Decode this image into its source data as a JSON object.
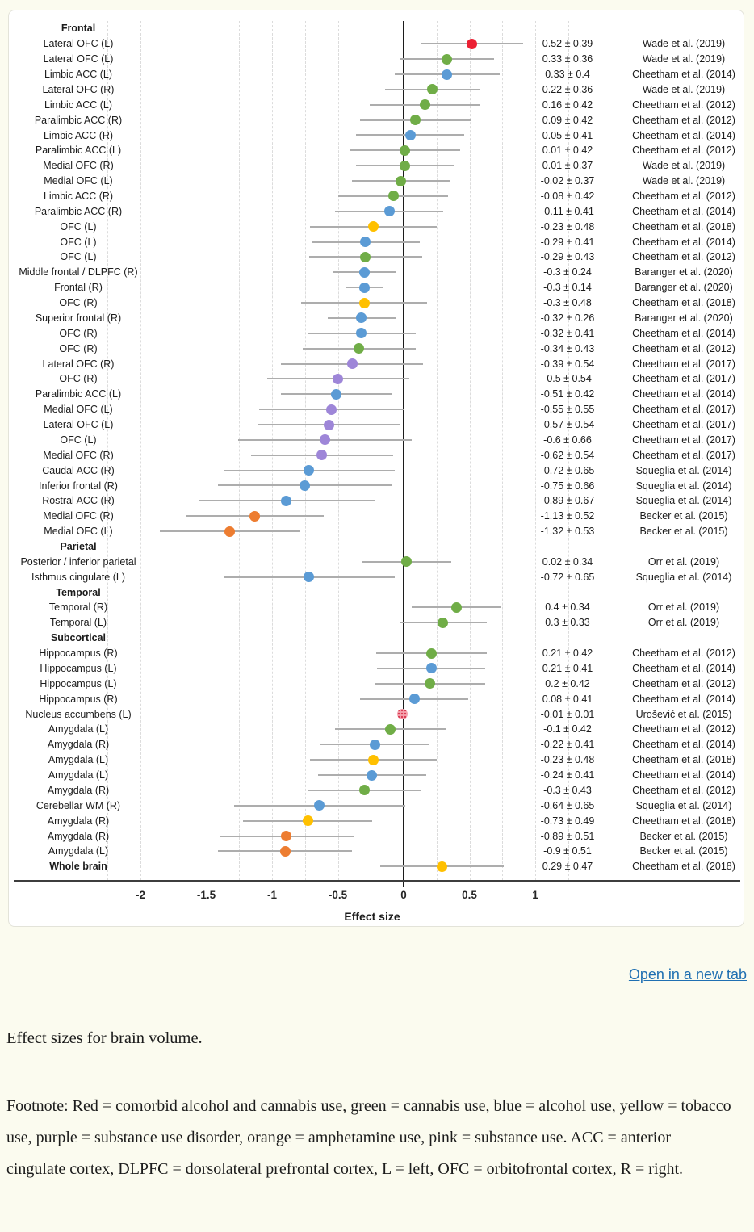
{
  "page": {
    "background": "#fbfbef"
  },
  "figure_viewer": {
    "open_link_label": "Open in a new tab",
    "link_color": "#1f6fb2"
  },
  "caption": "Effect sizes for brain volume.",
  "footnote": "Footnote: Red = comorbid alcohol and cannabis use, green = cannabis use, blue = alcohol use, yellow = tobacco use, purple = substance use disorder, orange = amphetamine use, pink = substance use. ACC = anterior cingulate cortex, DLPFC = dorsolateral prefrontal cortex, L = left, OFC = orbitofrontal cortex, R = right.",
  "chart_data": {
    "type": "scatter",
    "subtype": "forest-plot",
    "xlabel": "Effect size",
    "tick_values": [
      -2,
      -1.5,
      -1,
      -0.5,
      0,
      0.5,
      1
    ],
    "tick_labels": [
      "-2",
      "-1.5",
      "-1",
      "-0.5",
      "0",
      "0.5",
      "1"
    ],
    "xlim": [
      -2.27,
      1.29
    ],
    "minor_grid_step": 0.25,
    "grid": "dashed-vertical",
    "colors": {
      "red": "#ec2033",
      "green": "#70ad47",
      "blue": "#5b9bd5",
      "yellow": "#ffc000",
      "purple": "#9e86d8",
      "orange": "#ed7d31",
      "pink": "#f5a3ae",
      "pink_pattern_dot": "#d93a52",
      "error_bar": "#adadad"
    },
    "color_legend": {
      "red": "comorbid alcohol and cannabis use",
      "green": "cannabis use",
      "blue": "alcohol use",
      "yellow": "tobacco use",
      "purple": "substance use disorder",
      "orange": "amphetamine use",
      "pink": "substance use"
    },
    "rows": [
      {
        "header": "Frontal"
      },
      {
        "label": "Lateral OFC (L)",
        "value": "0.52 ± 0.39",
        "effect": 0.52,
        "sd": 0.39,
        "color": "red",
        "study": "Wade et al. (2019)"
      },
      {
        "label": "Lateral OFC (L)",
        "value": "0.33 ± 0.36",
        "effect": 0.33,
        "sd": 0.36,
        "color": "green",
        "study": "Wade et al. (2019)"
      },
      {
        "label": "Limbic ACC (L)",
        "value": "0.33 ± 0.4",
        "effect": 0.33,
        "sd": 0.4,
        "color": "blue",
        "study": "Cheetham et al. (2014)"
      },
      {
        "label": "Lateral OFC (R)",
        "value": "0.22 ± 0.36",
        "effect": 0.22,
        "sd": 0.36,
        "color": "green",
        "study": "Wade et al. (2019)"
      },
      {
        "label": "Limbic ACC (L)",
        "value": "0.16 ± 0.42",
        "effect": 0.16,
        "sd": 0.42,
        "color": "green",
        "study": "Cheetham et al. (2012)"
      },
      {
        "label": "Paralimbic ACC (R)",
        "value": "0.09 ± 0.42",
        "effect": 0.09,
        "sd": 0.42,
        "color": "green",
        "study": "Cheetham et al. (2012)"
      },
      {
        "label": "Limbic ACC (R)",
        "value": "0.05 ± 0.41",
        "effect": 0.05,
        "sd": 0.41,
        "color": "blue",
        "study": "Cheetham et al. (2014)"
      },
      {
        "label": "Paralimbic ACC (L)",
        "value": "0.01 ± 0.42",
        "effect": 0.01,
        "sd": 0.42,
        "color": "green",
        "study": "Cheetham et al. (2012)"
      },
      {
        "label": "Medial OFC (R)",
        "value": "0.01 ± 0.37",
        "effect": 0.01,
        "sd": 0.37,
        "color": "green",
        "study": "Wade et al. (2019)"
      },
      {
        "label": "Medial OFC (L)",
        "value": "-0.02 ± 0.37",
        "effect": -0.02,
        "sd": 0.37,
        "color": "green",
        "study": "Wade et al. (2019)"
      },
      {
        "label": "Limbic ACC (R)",
        "value": "-0.08 ± 0.42",
        "effect": -0.08,
        "sd": 0.42,
        "color": "green",
        "study": "Cheetham et al. (2012)"
      },
      {
        "label": "Paralimbic ACC (R)",
        "value": "-0.11 ± 0.41",
        "effect": -0.11,
        "sd": 0.41,
        "color": "blue",
        "study": "Cheetham et al. (2014)"
      },
      {
        "label": "OFC (L)",
        "value": "-0.23 ± 0.48",
        "effect": -0.23,
        "sd": 0.48,
        "color": "yellow",
        "study": "Cheetham et al. (2018)"
      },
      {
        "label": "OFC (L)",
        "value": "-0.29 ± 0.41",
        "effect": -0.29,
        "sd": 0.41,
        "color": "blue",
        "study": "Cheetham et al. (2014)"
      },
      {
        "label": "OFC (L)",
        "value": "-0.29 ± 0.43",
        "effect": -0.29,
        "sd": 0.43,
        "color": "green",
        "study": "Cheetham et al. (2012)"
      },
      {
        "label": "Middle frontal / DLPFC (R)",
        "value": "-0.3 ± 0.24",
        "effect": -0.3,
        "sd": 0.24,
        "color": "blue",
        "study": "Baranger et al. (2020)"
      },
      {
        "label": "Frontal (R)",
        "value": "-0.3 ± 0.14",
        "effect": -0.3,
        "sd": 0.14,
        "color": "blue",
        "study": "Baranger et al. (2020)"
      },
      {
        "label": "OFC (R)",
        "value": "-0.3 ± 0.48",
        "effect": -0.3,
        "sd": 0.48,
        "color": "yellow",
        "study": "Cheetham et al. (2018)"
      },
      {
        "label": "Superior frontal (R)",
        "value": "-0.32 ± 0.26",
        "effect": -0.32,
        "sd": 0.26,
        "color": "blue",
        "study": "Baranger et al. (2020)"
      },
      {
        "label": "OFC (R)",
        "value": "-0.32 ± 0.41",
        "effect": -0.32,
        "sd": 0.41,
        "color": "blue",
        "study": "Cheetham et al. (2014)"
      },
      {
        "label": "OFC (R)",
        "value": "-0.34 ± 0.43",
        "effect": -0.34,
        "sd": 0.43,
        "color": "green",
        "study": "Cheetham et al. (2012)"
      },
      {
        "label": "Lateral OFC (R)",
        "value": "-0.39 ± 0.54",
        "effect": -0.39,
        "sd": 0.54,
        "color": "purple",
        "study": "Cheetham et al. (2017)"
      },
      {
        "label": "OFC (R)",
        "value": "-0.5 ± 0.54",
        "effect": -0.5,
        "sd": 0.54,
        "color": "purple",
        "study": "Cheetham et al. (2017)"
      },
      {
        "label": "Paralimbic ACC (L)",
        "value": "-0.51 ± 0.42",
        "effect": -0.51,
        "sd": 0.42,
        "color": "blue",
        "study": "Cheetham et al. (2014)"
      },
      {
        "label": "Medial OFC (L)",
        "value": "-0.55 ± 0.55",
        "effect": -0.55,
        "sd": 0.55,
        "color": "purple",
        "study": "Cheetham et al. (2017)"
      },
      {
        "label": "Lateral OFC (L)",
        "value": "-0.57 ± 0.54",
        "effect": -0.57,
        "sd": 0.54,
        "color": "purple",
        "study": "Cheetham et al. (2017)"
      },
      {
        "label": "OFC (L)",
        "value": "-0.6 ± 0.66",
        "effect": -0.6,
        "sd": 0.66,
        "color": "purple",
        "study": "Cheetham et al. (2017)"
      },
      {
        "label": "Medial OFC (R)",
        "value": "-0.62 ± 0.54",
        "effect": -0.62,
        "sd": 0.54,
        "color": "purple",
        "study": "Cheetham et al. (2017)"
      },
      {
        "label": "Caudal ACC (R)",
        "value": "-0.72 ± 0.65",
        "effect": -0.72,
        "sd": 0.65,
        "color": "blue",
        "study": "Squeglia et al. (2014)"
      },
      {
        "label": "Inferior frontal (R)",
        "value": "-0.75 ± 0.66",
        "effect": -0.75,
        "sd": 0.66,
        "color": "blue",
        "study": "Squeglia et al. (2014)"
      },
      {
        "label": "Rostral ACC (R)",
        "value": "-0.89 ± 0.67",
        "effect": -0.89,
        "sd": 0.67,
        "color": "blue",
        "study": "Squeglia et al. (2014)"
      },
      {
        "label": "Medial OFC (R)",
        "value": "-1.13 ± 0.52",
        "effect": -1.13,
        "sd": 0.52,
        "color": "orange",
        "study": "Becker et al. (2015)"
      },
      {
        "label": "Medial OFC (L)",
        "value": "-1.32 ± 0.53",
        "effect": -1.32,
        "sd": 0.53,
        "color": "orange",
        "study": "Becker et al. (2015)"
      },
      {
        "header": "Parietal"
      },
      {
        "label": "Posterior / inferior parietal",
        "value": "0.02 ± 0.34",
        "effect": 0.02,
        "sd": 0.34,
        "color": "green",
        "study": "Orr et al. (2019)"
      },
      {
        "label": "Isthmus cingulate (L)",
        "value": "-0.72 ± 0.65",
        "effect": -0.72,
        "sd": 0.65,
        "color": "blue",
        "study": "Squeglia et al. (2014)"
      },
      {
        "header": "Temporal"
      },
      {
        "label": "Temporal (R)",
        "value": "0.4 ± 0.34",
        "effect": 0.4,
        "sd": 0.34,
        "color": "green",
        "study": "Orr et al. (2019)"
      },
      {
        "label": "Temporal (L)",
        "value": "0.3 ± 0.33",
        "effect": 0.3,
        "sd": 0.33,
        "color": "green",
        "study": "Orr et al. (2019)"
      },
      {
        "header": "Subcortical"
      },
      {
        "label": "Hippocampus (R)",
        "value": "0.21 ± 0.42",
        "effect": 0.21,
        "sd": 0.42,
        "color": "green",
        "study": "Cheetham et al. (2012)"
      },
      {
        "label": "Hippocampus (L)",
        "value": "0.21 ± 0.41",
        "effect": 0.21,
        "sd": 0.41,
        "color": "blue",
        "study": "Cheetham et al. (2014)"
      },
      {
        "label": "Hippocampus (L)",
        "value": "0.2 ± 0.42",
        "effect": 0.2,
        "sd": 0.42,
        "color": "green",
        "study": "Cheetham et al. (2012)"
      },
      {
        "label": "Hippocampus (R)",
        "value": "0.08 ± 0.41",
        "effect": 0.08,
        "sd": 0.41,
        "color": "blue",
        "study": "Cheetham et al. (2014)"
      },
      {
        "label": "Nucleus accumbens (L)",
        "value": "-0.01 ± 0.01",
        "effect": -0.01,
        "sd": 0.01,
        "color": "pink",
        "study": "Urošević et al. (2015)"
      },
      {
        "label": "Amygdala (L)",
        "value": "-0.1 ± 0.42",
        "effect": -0.1,
        "sd": 0.42,
        "color": "green",
        "study": "Cheetham et al. (2012)"
      },
      {
        "label": "Amygdala (R)",
        "value": "-0.22 ± 0.41",
        "effect": -0.22,
        "sd": 0.41,
        "color": "blue",
        "study": "Cheetham et al. (2014)"
      },
      {
        "label": "Amygdala (L)",
        "value": "-0.23 ± 0.48",
        "effect": -0.23,
        "sd": 0.48,
        "color": "yellow",
        "study": "Cheetham et al. (2018)"
      },
      {
        "label": "Amygdala (L)",
        "value": "-0.24 ± 0.41",
        "effect": -0.24,
        "sd": 0.41,
        "color": "blue",
        "study": "Cheetham et al. (2014)"
      },
      {
        "label": "Amygdala (R)",
        "value": "-0.3 ± 0.43",
        "effect": -0.3,
        "sd": 0.43,
        "color": "green",
        "study": "Cheetham et al. (2012)"
      },
      {
        "label": "Cerebellar WM (R)",
        "value": "-0.64 ± 0.65",
        "effect": -0.64,
        "sd": 0.65,
        "color": "blue",
        "study": "Squeglia et al. (2014)"
      },
      {
        "label": "Amygdala (R)",
        "value": "-0.73 ± 0.49",
        "effect": -0.73,
        "sd": 0.49,
        "color": "yellow",
        "study": "Cheetham et al. (2018)"
      },
      {
        "label": "Amygdala (R)",
        "value": "-0.89 ± 0.51",
        "effect": -0.89,
        "sd": 0.51,
        "color": "orange",
        "study": "Becker et al. (2015)"
      },
      {
        "label": "Amygdala (L)",
        "value": "-0.9 ± 0.51",
        "effect": -0.9,
        "sd": 0.51,
        "color": "orange",
        "study": "Becker et al. (2015)"
      },
      {
        "label": "Whole brain",
        "bold_label": true,
        "value": "0.29 ± 0.47",
        "effect": 0.29,
        "sd": 0.47,
        "color": "yellow",
        "study": "Cheetham et al. (2018)"
      }
    ]
  }
}
